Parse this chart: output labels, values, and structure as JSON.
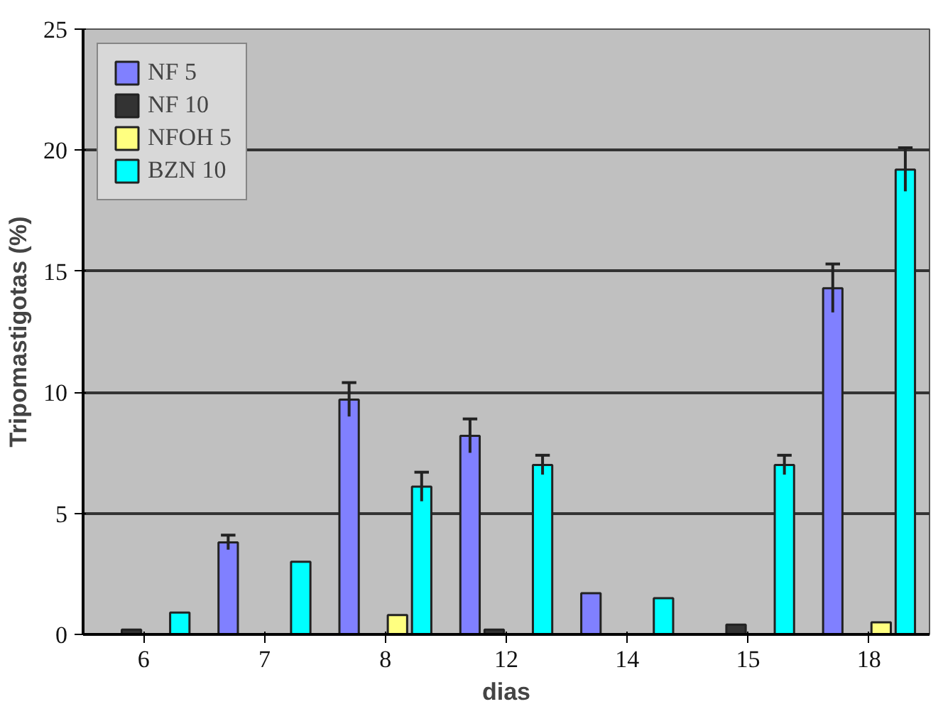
{
  "chart_data": {
    "type": "bar",
    "xlabel": "dias",
    "ylabel": "Tripomastigotas (%)",
    "categories": [
      "6",
      "7",
      "8",
      "12",
      "14",
      "15",
      "18"
    ],
    "series": [
      {
        "name": "NF 5",
        "color": "#8080ff",
        "values": [
          null,
          3.8,
          9.7,
          8.2,
          1.7,
          null,
          14.3
        ],
        "errors": [
          null,
          0.3,
          0.7,
          0.7,
          null,
          null,
          1.0
        ]
      },
      {
        "name": "NF 10",
        "color": "#333333",
        "values": [
          0.2,
          null,
          null,
          0.2,
          null,
          0.4,
          null
        ],
        "errors": [
          null,
          null,
          null,
          null,
          null,
          null,
          null
        ]
      },
      {
        "name": "NFOH 5",
        "color": "#ffff80",
        "values": [
          null,
          null,
          0.8,
          null,
          null,
          null,
          0.5
        ],
        "errors": [
          null,
          null,
          null,
          null,
          null,
          null,
          null
        ]
      },
      {
        "name": "BZN 10",
        "color": "#00ffff",
        "values": [
          0.9,
          3.0,
          6.1,
          7.0,
          1.5,
          7.0,
          19.2
        ],
        "errors": [
          null,
          null,
          0.6,
          0.4,
          null,
          0.4,
          0.9
        ]
      }
    ],
    "ylim": [
      0,
      25
    ],
    "yticks": [
      0,
      5,
      10,
      15,
      20,
      25
    ],
    "grid": "y",
    "legend": "top left"
  }
}
